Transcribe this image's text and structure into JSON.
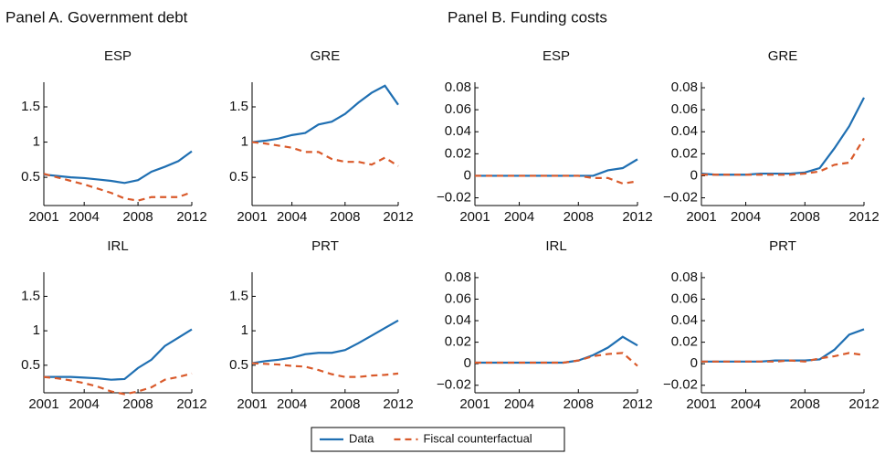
{
  "panels": [
    {
      "title": "Panel A. Government debt"
    },
    {
      "title": "Panel B. Funding costs"
    }
  ],
  "chart_data": [
    {
      "type": "line",
      "title": "ESP",
      "x": [
        2001,
        2002,
        2003,
        2004,
        2005,
        2006,
        2007,
        2008,
        2009,
        2010,
        2011,
        2012
      ],
      "xlim": [
        2001,
        2012
      ],
      "xticks": [
        2001,
        2004,
        2008,
        2012
      ],
      "ylim": [
        0.1,
        1.85
      ],
      "yticks": [
        0.5,
        1,
        1.5
      ],
      "series": [
        {
          "name": "Data",
          "color": "#1f6fb2",
          "values": [
            0.54,
            0.52,
            0.5,
            0.49,
            0.47,
            0.45,
            0.42,
            0.46,
            0.58,
            0.65,
            0.73,
            0.87
          ]
        },
        {
          "name": "Fiscal counterfactual",
          "color": "#d95a2b",
          "dashed": true,
          "values": [
            0.55,
            0.5,
            0.45,
            0.4,
            0.34,
            0.28,
            0.2,
            0.17,
            0.22,
            0.22,
            0.22,
            0.29
          ]
        }
      ]
    },
    {
      "type": "line",
      "title": "GRE",
      "x": [
        2001,
        2002,
        2003,
        2004,
        2005,
        2006,
        2007,
        2008,
        2009,
        2010,
        2011,
        2012
      ],
      "xlim": [
        2001,
        2012
      ],
      "xticks": [
        2001,
        2004,
        2008,
        2012
      ],
      "ylim": [
        0.1,
        1.85
      ],
      "yticks": [
        0.5,
        1,
        1.5
      ],
      "series": [
        {
          "name": "Data",
          "color": "#1f6fb2",
          "values": [
            1.0,
            1.02,
            1.05,
            1.1,
            1.13,
            1.25,
            1.29,
            1.4,
            1.56,
            1.7,
            1.8,
            1.53
          ]
        },
        {
          "name": "Fiscal counterfactual",
          "color": "#d95a2b",
          "dashed": true,
          "values": [
            1.0,
            0.98,
            0.95,
            0.92,
            0.86,
            0.86,
            0.76,
            0.72,
            0.72,
            0.68,
            0.78,
            0.66
          ]
        }
      ]
    },
    {
      "type": "line",
      "title": "ESP",
      "x": [
        2001,
        2002,
        2003,
        2004,
        2005,
        2006,
        2007,
        2008,
        2009,
        2010,
        2011,
        2012
      ],
      "xlim": [
        2001,
        2012
      ],
      "xticks": [
        2001,
        2004,
        2008,
        2012
      ],
      "ylim": [
        -0.027,
        0.085
      ],
      "yticks": [
        {
          "value": -0.02,
          "label": "−0.02"
        },
        0,
        0.02,
        0.04,
        0.06,
        0.08
      ],
      "series": [
        {
          "name": "Data",
          "color": "#1f6fb2",
          "values": [
            0,
            0,
            0,
            0,
            0,
            0,
            0,
            0,
            0,
            0.005,
            0.007,
            0.015
          ]
        },
        {
          "name": "Fiscal counterfactual",
          "color": "#d95a2b",
          "dashed": true,
          "values": [
            0,
            0,
            0,
            0,
            0,
            0,
            0,
            0,
            -0.002,
            -0.002,
            -0.007,
            -0.005
          ]
        }
      ]
    },
    {
      "type": "line",
      "title": "GRE",
      "x": [
        2001,
        2002,
        2003,
        2004,
        2005,
        2006,
        2007,
        2008,
        2009,
        2010,
        2011,
        2012
      ],
      "xlim": [
        2001,
        2012
      ],
      "xticks": [
        2001,
        2004,
        2008,
        2012
      ],
      "ylim": [
        -0.027,
        0.085
      ],
      "yticks": [
        {
          "value": -0.02,
          "label": "−0.02"
        },
        0,
        0.02,
        0.04,
        0.06,
        0.08
      ],
      "series": [
        {
          "name": "Data",
          "color": "#1f6fb2",
          "values": [
            0.002,
            0.001,
            0.001,
            0.001,
            0.002,
            0.002,
            0.002,
            0.003,
            0.007,
            0.025,
            0.045,
            0.071
          ]
        },
        {
          "name": "Fiscal counterfactual",
          "color": "#d95a2b",
          "dashed": true,
          "values": [
            0.001,
            0.001,
            0.001,
            0.001,
            0.001,
            0.001,
            0.001,
            0.002,
            0.004,
            0.01,
            0.012,
            0.034
          ]
        }
      ]
    },
    {
      "type": "line",
      "title": "IRL",
      "x": [
        2001,
        2002,
        2003,
        2004,
        2005,
        2006,
        2007,
        2008,
        2009,
        2010,
        2011,
        2012
      ],
      "xlim": [
        2001,
        2012
      ],
      "xticks": [
        2001,
        2004,
        2008,
        2012
      ],
      "ylim": [
        0.1,
        1.85
      ],
      "yticks": [
        0.5,
        1,
        1.5
      ],
      "series": [
        {
          "name": "Data",
          "color": "#1f6fb2",
          "values": [
            0.33,
            0.33,
            0.33,
            0.32,
            0.31,
            0.29,
            0.3,
            0.46,
            0.58,
            0.78,
            0.9,
            1.02
          ]
        },
        {
          "name": "Fiscal counterfactual",
          "color": "#d95a2b",
          "dashed": true,
          "values": [
            0.33,
            0.31,
            0.28,
            0.24,
            0.19,
            0.12,
            0.08,
            0.12,
            0.18,
            0.29,
            0.33,
            0.38
          ]
        }
      ]
    },
    {
      "type": "line",
      "title": "PRT",
      "x": [
        2001,
        2002,
        2003,
        2004,
        2005,
        2006,
        2007,
        2008,
        2009,
        2010,
        2011,
        2012
      ],
      "xlim": [
        2001,
        2012
      ],
      "xticks": [
        2001,
        2004,
        2008,
        2012
      ],
      "ylim": [
        0.1,
        1.85
      ],
      "yticks": [
        0.5,
        1,
        1.5
      ],
      "series": [
        {
          "name": "Data",
          "color": "#1f6fb2",
          "values": [
            0.53,
            0.56,
            0.58,
            0.61,
            0.66,
            0.68,
            0.68,
            0.72,
            0.82,
            0.93,
            1.04,
            1.15
          ]
        },
        {
          "name": "Fiscal counterfactual",
          "color": "#d95a2b",
          "dashed": true,
          "values": [
            0.53,
            0.52,
            0.51,
            0.49,
            0.48,
            0.43,
            0.37,
            0.33,
            0.33,
            0.35,
            0.36,
            0.38
          ]
        }
      ]
    },
    {
      "type": "line",
      "title": "IRL",
      "x": [
        2001,
        2002,
        2003,
        2004,
        2005,
        2006,
        2007,
        2008,
        2009,
        2010,
        2011,
        2012
      ],
      "xlim": [
        2001,
        2012
      ],
      "xticks": [
        2001,
        2004,
        2008,
        2012
      ],
      "ylim": [
        -0.027,
        0.085
      ],
      "yticks": [
        {
          "value": -0.02,
          "label": "−0.02"
        },
        0,
        0.02,
        0.04,
        0.06,
        0.08
      ],
      "series": [
        {
          "name": "Data",
          "color": "#1f6fb2",
          "values": [
            0.001,
            0.001,
            0.001,
            0.001,
            0.001,
            0.001,
            0.001,
            0.003,
            0.008,
            0.015,
            0.025,
            0.017
          ]
        },
        {
          "name": "Fiscal counterfactual",
          "color": "#d95a2b",
          "dashed": true,
          "values": [
            0.001,
            0.001,
            0.001,
            0.001,
            0.001,
            0.001,
            0.001,
            0.003,
            0.007,
            0.009,
            0.01,
            -0.002
          ]
        }
      ]
    },
    {
      "type": "line",
      "title": "PRT",
      "x": [
        2001,
        2002,
        2003,
        2004,
        2005,
        2006,
        2007,
        2008,
        2009,
        2010,
        2011,
        2012
      ],
      "xlim": [
        2001,
        2012
      ],
      "xticks": [
        2001,
        2004,
        2008,
        2012
      ],
      "ylim": [
        -0.027,
        0.085
      ],
      "yticks": [
        {
          "value": -0.02,
          "label": "−0.02"
        },
        0,
        0.02,
        0.04,
        0.06,
        0.08
      ],
      "series": [
        {
          "name": "Data",
          "color": "#1f6fb2",
          "values": [
            0.002,
            0.002,
            0.002,
            0.002,
            0.002,
            0.003,
            0.003,
            0.003,
            0.004,
            0.013,
            0.027,
            0.032
          ]
        },
        {
          "name": "Fiscal counterfactual",
          "color": "#d95a2b",
          "dashed": true,
          "values": [
            0.002,
            0.002,
            0.002,
            0.002,
            0.002,
            0.002,
            0.003,
            0.002,
            0.005,
            0.007,
            0.01,
            0.008
          ]
        }
      ]
    }
  ]
}
